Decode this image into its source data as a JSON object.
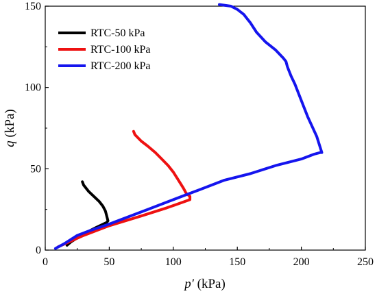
{
  "chart_data": {
    "type": "line",
    "title": "",
    "xlabel": {
      "var": "p′",
      "unit": " (kPa)"
    },
    "ylabel": {
      "var": "q",
      "unit": " (kPa)"
    },
    "xlim": [
      0,
      250
    ],
    "ylim": [
      0,
      150
    ],
    "xticks": [
      0,
      50,
      100,
      150,
      200,
      250
    ],
    "yticks": [
      0,
      50,
      100,
      150
    ],
    "grid": false,
    "legend": "top-left",
    "series": [
      {
        "name": "RTC-50 kPa",
        "color": "#000000",
        "x": [
          29,
          30,
          34,
          38,
          42,
          45,
          47,
          48,
          49,
          48,
          40,
          30,
          20,
          17
        ],
        "y": [
          42,
          40,
          36,
          33,
          30,
          27,
          24,
          21,
          18,
          17,
          14,
          10,
          5,
          3
        ]
      },
      {
        "name": "RTC-100 kPa",
        "color": "#ee1111",
        "x": [
          69,
          70,
          75,
          80,
          86,
          91,
          96,
          100,
          104,
          108,
          110,
          113,
          113,
          95,
          75,
          50,
          30,
          10
        ],
        "y": [
          73,
          71,
          67,
          64,
          60,
          56,
          52,
          48,
          43,
          38,
          35,
          33,
          31,
          26,
          21,
          15,
          9,
          2
        ]
      },
      {
        "name": "RTC-200 kPa",
        "color": "#1515ee",
        "x": [
          8,
          15,
          25,
          35,
          50,
          60,
          80,
          100,
          110,
          120,
          140,
          160,
          180,
          200,
          210,
          215,
          216,
          212,
          205,
          199,
          195,
          192,
          190,
          189,
          188,
          186,
          180,
          172,
          165,
          160,
          158,
          155,
          150,
          145,
          136
        ],
        "y": [
          1,
          4,
          9,
          12,
          16,
          19,
          25,
          31,
          34,
          37,
          43,
          47,
          52,
          56,
          59,
          60,
          60,
          70,
          82,
          94,
          102,
          107,
          111,
          113,
          116,
          118,
          123,
          128,
          134,
          140,
          142,
          145,
          148,
          150,
          151
        ]
      }
    ]
  }
}
